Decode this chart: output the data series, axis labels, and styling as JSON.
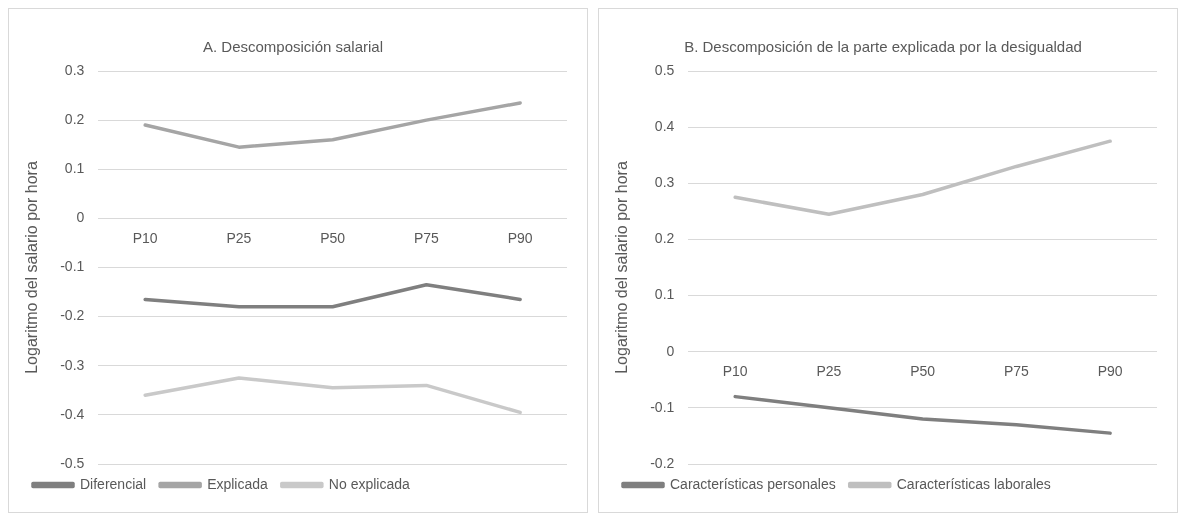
{
  "chart_data": [
    {
      "type": "line",
      "title": "A. Descomposición salarial",
      "ylabel": "Logaritmo del salario por hora",
      "categories": [
        "P10",
        "P25",
        "P50",
        "P75",
        "P90"
      ],
      "series": [
        {
          "name": "Diferencial",
          "color": "#7f7f7f",
          "values": [
            -0.165,
            -0.18,
            -0.18,
            -0.135,
            -0.165
          ]
        },
        {
          "name": "Explicada",
          "color": "#a5a5a5",
          "values": [
            0.19,
            0.145,
            0.16,
            0.2,
            0.235
          ]
        },
        {
          "name": "No explicada",
          "color": "#c9c9c9",
          "values": [
            -0.36,
            -0.325,
            -0.345,
            -0.34,
            -0.395
          ]
        }
      ],
      "ylim": [
        -0.5,
        0.3
      ],
      "yticks": [
        -0.5,
        -0.4,
        -0.3,
        -0.2,
        -0.1,
        0,
        0.1,
        0.2,
        0.3
      ],
      "grid": "y",
      "legend": "bottom",
      "marker": "none",
      "line_style": "solid"
    },
    {
      "type": "line",
      "title": "B. Descomposición de la parte explicada por la desigualdad",
      "ylabel": "Logaritmo del salario por hora",
      "categories": [
        "P10",
        "P25",
        "P50",
        "P75",
        "P90"
      ],
      "series": [
        {
          "name": "Características personales",
          "color": "#7f7f7f",
          "values": [
            -0.08,
            -0.1,
            -0.12,
            -0.13,
            -0.145
          ]
        },
        {
          "name": "Características laborales",
          "color": "#bfbfbf",
          "values": [
            0.275,
            0.245,
            0.28,
            0.33,
            0.375
          ]
        }
      ],
      "ylim": [
        -0.2,
        0.5
      ],
      "yticks": [
        -0.2,
        -0.1,
        0,
        0.1,
        0.2,
        0.3,
        0.4,
        0.5
      ],
      "grid": "y",
      "legend": "bottom",
      "marker": "none",
      "line_style": "solid"
    }
  ]
}
